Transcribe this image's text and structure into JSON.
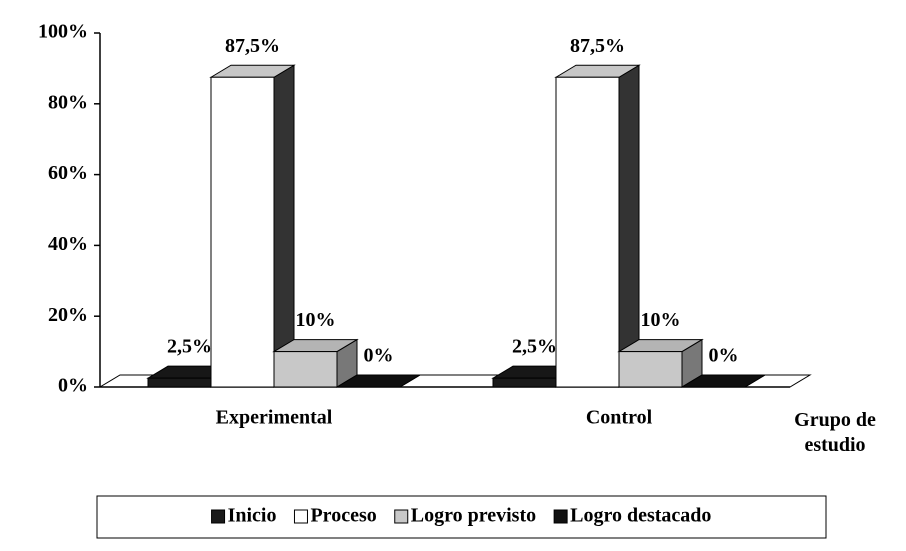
{
  "chart_data": {
    "type": "bar3d",
    "x_label": "Grupo de estudio",
    "categories": [
      "Experimental",
      "Control"
    ],
    "series": [
      {
        "name": "Inicio",
        "color": "#1a1a1a",
        "values": [
          2.5,
          2.5
        ],
        "value_labels": [
          "2,5%",
          "2,5%"
        ]
      },
      {
        "name": "Proceso",
        "color": "#ffffff",
        "values": [
          87.5,
          87.5
        ],
        "value_labels": [
          "87,5%",
          "87,5%"
        ]
      },
      {
        "name": "Logro previsto",
        "color": "#c8c8c8",
        "values": [
          10,
          10
        ],
        "value_labels": [
          "10%",
          "10%"
        ]
      },
      {
        "name": "Logro destacado",
        "color": "#111111",
        "values": [
          0,
          0
        ],
        "value_labels": [
          "0%",
          "0%"
        ]
      }
    ],
    "ylim": [
      0,
      100
    ],
    "yticks": [
      {
        "value": 0,
        "label": "0%"
      },
      {
        "value": 20,
        "label": "20%"
      },
      {
        "value": 40,
        "label": "40%"
      },
      {
        "value": 60,
        "label": "60%"
      },
      {
        "value": 80,
        "label": "80%"
      },
      {
        "value": 100,
        "label": "100%"
      }
    ],
    "legend": "bottom"
  }
}
